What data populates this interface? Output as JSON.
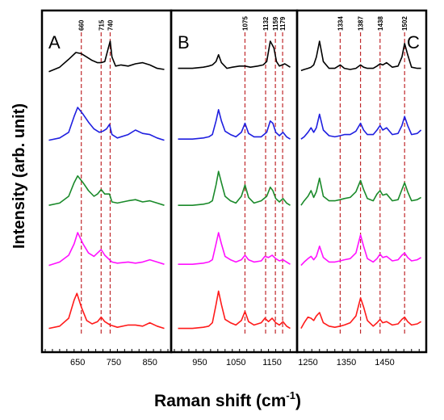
{
  "chart_data": [
    {
      "type": "line",
      "panel": "A",
      "xlim": [
        560,
        900
      ],
      "xticks": [
        650,
        750,
        850
      ],
      "peaks": [
        660,
        715,
        740
      ],
      "series": [
        {
          "color": "#000000",
          "x": [
            570,
            600,
            625,
            645,
            660,
            675,
            690,
            705,
            715,
            725,
            735,
            740,
            745,
            755,
            770,
            790,
            810,
            830,
            850,
            870,
            890
          ],
          "y": [
            0.15,
            0.35,
            0.7,
            1.0,
            0.95,
            0.8,
            0.65,
            0.55,
            0.55,
            0.6,
            1.2,
            1.5,
            0.8,
            0.4,
            0.45,
            0.4,
            0.5,
            0.55,
            0.45,
            0.3,
            0.25
          ]
        },
        {
          "color": "#1f1fe0",
          "x": [
            570,
            600,
            625,
            640,
            650,
            665,
            680,
            695,
            710,
            720,
            730,
            738,
            745,
            760,
            790,
            810,
            830,
            850,
            870,
            890
          ],
          "y": [
            0.05,
            0.15,
            0.4,
            1.1,
            1.5,
            1.2,
            0.85,
            0.55,
            0.4,
            0.45,
            0.55,
            0.75,
            0.3,
            0.15,
            0.3,
            0.5,
            0.35,
            0.3,
            0.15,
            0.05
          ]
        },
        {
          "color": "#1a8a2a",
          "x": [
            570,
            600,
            625,
            640,
            650,
            665,
            680,
            695,
            705,
            715,
            725,
            738,
            745,
            760,
            790,
            810,
            830,
            850,
            870,
            890
          ],
          "y": [
            0.1,
            0.2,
            0.5,
            1.1,
            1.4,
            1.1,
            0.75,
            0.5,
            0.6,
            0.8,
            0.6,
            0.6,
            0.25,
            0.2,
            0.3,
            0.35,
            0.25,
            0.3,
            0.2,
            0.1
          ]
        },
        {
          "color": "#ff10ff",
          "x": [
            570,
            600,
            625,
            640,
            650,
            665,
            680,
            695,
            705,
            715,
            725,
            738,
            745,
            760,
            790,
            810,
            830,
            850,
            870,
            890
          ],
          "y": [
            0.05,
            0.2,
            0.5,
            1.0,
            1.5,
            1.0,
            0.6,
            0.45,
            0.6,
            0.75,
            0.5,
            0.3,
            0.2,
            0.15,
            0.2,
            0.15,
            0.2,
            0.3,
            0.2,
            0.1
          ]
        },
        {
          "color": "#ff1a1a",
          "x": [
            570,
            600,
            625,
            640,
            648,
            660,
            675,
            690,
            705,
            715,
            725,
            740,
            760,
            790,
            810,
            830,
            850,
            870,
            890
          ],
          "y": [
            0.05,
            0.15,
            0.5,
            1.3,
            1.6,
            1.0,
            0.4,
            0.25,
            0.35,
            0.55,
            0.35,
            0.2,
            0.1,
            0.2,
            0.2,
            0.15,
            0.3,
            0.15,
            0.05
          ]
        }
      ]
    },
    {
      "type": "line",
      "panel": "B",
      "xlim": [
        880,
        1210
      ],
      "xticks": [
        950,
        1050,
        1150
      ],
      "peaks": [
        1075,
        1132,
        1159,
        1179
      ],
      "series": [
        {
          "color": "#000000",
          "x": [
            890,
            930,
            960,
            975,
            985,
            995,
            1002,
            1010,
            1025,
            1040,
            1060,
            1075,
            1090,
            1110,
            1125,
            1135,
            1145,
            1155,
            1162,
            1170,
            1185,
            1200
          ],
          "y": [
            0.3,
            0.3,
            0.35,
            0.4,
            0.45,
            0.6,
            0.9,
            0.55,
            0.3,
            0.35,
            0.4,
            0.4,
            0.35,
            0.4,
            0.45,
            0.6,
            1.5,
            1.2,
            0.6,
            0.4,
            0.5,
            0.35
          ]
        },
        {
          "color": "#1f1fe0",
          "x": [
            890,
            930,
            960,
            975,
            985,
            995,
            1002,
            1010,
            1020,
            1035,
            1050,
            1065,
            1075,
            1085,
            1100,
            1120,
            1135,
            1145,
            1152,
            1160,
            1170,
            1180,
            1190,
            1200
          ],
          "y": [
            0.1,
            0.1,
            0.15,
            0.2,
            0.3,
            0.9,
            1.4,
            0.9,
            0.45,
            0.3,
            0.2,
            0.4,
            0.8,
            0.35,
            0.2,
            0.2,
            0.4,
            0.9,
            0.8,
            0.4,
            0.25,
            0.4,
            0.2,
            0.1
          ]
        },
        {
          "color": "#1a8a2a",
          "x": [
            890,
            930,
            960,
            975,
            985,
            995,
            1002,
            1010,
            1020,
            1035,
            1050,
            1065,
            1075,
            1085,
            1100,
            1120,
            1135,
            1145,
            1152,
            1160,
            1170,
            1180,
            1190,
            1200
          ],
          "y": [
            0.1,
            0.1,
            0.15,
            0.2,
            0.3,
            1.0,
            1.6,
            1.1,
            0.5,
            0.3,
            0.2,
            0.5,
            1.0,
            0.45,
            0.2,
            0.3,
            0.5,
            0.9,
            0.75,
            0.4,
            0.25,
            0.4,
            0.2,
            0.1
          ]
        },
        {
          "color": "#ff10ff",
          "x": [
            890,
            930,
            960,
            975,
            985,
            995,
            1002,
            1010,
            1020,
            1035,
            1050,
            1065,
            1075,
            1085,
            1100,
            1120,
            1130,
            1140,
            1150,
            1160,
            1170,
            1180,
            1190,
            1200
          ],
          "y": [
            0.1,
            0.1,
            0.15,
            0.2,
            0.3,
            1.0,
            1.5,
            1.0,
            0.45,
            0.3,
            0.2,
            0.3,
            0.5,
            0.3,
            0.2,
            0.25,
            0.45,
            0.4,
            0.5,
            0.35,
            0.25,
            0.3,
            0.2,
            0.1
          ]
        },
        {
          "color": "#ff1a1a",
          "x": [
            890,
            930,
            960,
            975,
            985,
            995,
            1002,
            1010,
            1020,
            1035,
            1050,
            1065,
            1075,
            1085,
            1100,
            1120,
            1130,
            1140,
            1150,
            1160,
            1170,
            1180,
            1190,
            1200
          ],
          "y": [
            0.05,
            0.05,
            0.1,
            0.15,
            0.3,
            1.1,
            1.7,
            1.1,
            0.45,
            0.3,
            0.2,
            0.4,
            0.8,
            0.35,
            0.2,
            0.3,
            0.5,
            0.35,
            0.5,
            0.3,
            0.2,
            0.35,
            0.15,
            0.05
          ]
        }
      ]
    },
    {
      "type": "line",
      "panel": "C",
      "xlim": [
        1230,
        1550
      ],
      "xticks": [
        1250,
        1350,
        1450
      ],
      "peaks": [
        1334,
        1387,
        1438,
        1502
      ],
      "series": [
        {
          "color": "#000000",
          "x": [
            1232,
            1240,
            1250,
            1258,
            1265,
            1272,
            1280,
            1290,
            1305,
            1320,
            1334,
            1345,
            1360,
            1375,
            1387,
            1395,
            1405,
            1420,
            1430,
            1438,
            1445,
            1455,
            1470,
            1485,
            1495,
            1502,
            1510,
            1520,
            1535,
            1545
          ],
          "y": [
            0.2,
            0.25,
            0.3,
            0.35,
            0.45,
            0.8,
            1.5,
            0.6,
            0.3,
            0.3,
            0.45,
            0.3,
            0.25,
            0.3,
            0.45,
            0.35,
            0.3,
            0.3,
            0.4,
            0.5,
            0.45,
            0.55,
            0.35,
            0.4,
            0.8,
            1.4,
            0.9,
            0.35,
            0.3,
            0.3
          ]
        },
        {
          "color": "#1f1fe0",
          "x": [
            1232,
            1240,
            1250,
            1258,
            1265,
            1272,
            1280,
            1290,
            1305,
            1320,
            1334,
            1345,
            1360,
            1375,
            1387,
            1395,
            1405,
            1420,
            1430,
            1438,
            1445,
            1455,
            1470,
            1485,
            1495,
            1502,
            1510,
            1520,
            1535,
            1545
          ],
          "y": [
            0.1,
            0.2,
            0.4,
            0.6,
            0.4,
            0.6,
            1.2,
            0.5,
            0.25,
            0.2,
            0.25,
            0.3,
            0.3,
            0.45,
            0.8,
            0.5,
            0.3,
            0.3,
            0.5,
            0.7,
            0.5,
            0.6,
            0.3,
            0.35,
            0.7,
            1.1,
            0.7,
            0.3,
            0.35,
            0.5
          ]
        },
        {
          "color": "#1a8a2a",
          "x": [
            1232,
            1240,
            1250,
            1258,
            1265,
            1272,
            1280,
            1290,
            1305,
            1320,
            1334,
            1345,
            1360,
            1375,
            1387,
            1395,
            1405,
            1420,
            1430,
            1438,
            1445,
            1455,
            1470,
            1485,
            1495,
            1502,
            1510,
            1520,
            1535,
            1545
          ],
          "y": [
            0.1,
            0.3,
            0.5,
            0.75,
            0.45,
            0.7,
            1.3,
            0.5,
            0.3,
            0.3,
            0.35,
            0.4,
            0.45,
            0.7,
            1.2,
            0.8,
            0.4,
            0.3,
            0.6,
            0.75,
            0.55,
            0.6,
            0.3,
            0.35,
            0.8,
            1.1,
            0.7,
            0.3,
            0.35,
            0.45
          ]
        },
        {
          "color": "#ff10ff",
          "x": [
            1232,
            1240,
            1250,
            1258,
            1265,
            1272,
            1280,
            1290,
            1305,
            1320,
            1334,
            1345,
            1360,
            1375,
            1387,
            1395,
            1405,
            1420,
            1430,
            1438,
            1445,
            1455,
            1470,
            1485,
            1495,
            1502,
            1510,
            1520,
            1535,
            1545
          ],
          "y": [
            0.05,
            0.2,
            0.35,
            0.45,
            0.3,
            0.45,
            0.9,
            0.4,
            0.2,
            0.2,
            0.25,
            0.3,
            0.35,
            0.6,
            1.4,
            0.9,
            0.35,
            0.2,
            0.35,
            0.55,
            0.4,
            0.45,
            0.25,
            0.3,
            0.5,
            0.6,
            0.4,
            0.25,
            0.3,
            0.4
          ]
        },
        {
          "color": "#ff1a1a",
          "x": [
            1232,
            1240,
            1250,
            1258,
            1265,
            1272,
            1280,
            1290,
            1305,
            1320,
            1334,
            1345,
            1360,
            1375,
            1387,
            1395,
            1405,
            1420,
            1430,
            1438,
            1445,
            1455,
            1470,
            1485,
            1495,
            1502,
            1510,
            1520,
            1535,
            1545
          ],
          "y": [
            0.05,
            0.3,
            0.55,
            0.5,
            0.4,
            0.6,
            0.75,
            0.3,
            0.15,
            0.1,
            0.15,
            0.2,
            0.3,
            0.6,
            1.4,
            1.0,
            0.4,
            0.15,
            0.3,
            0.45,
            0.3,
            0.35,
            0.2,
            0.25,
            0.45,
            0.55,
            0.35,
            0.2,
            0.25,
            0.35
          ]
        }
      ]
    }
  ],
  "labels": {
    "ylabel": "Intensity (arb. unit)",
    "xlabel": "Raman shift (cm",
    "xlabel_sup": "-1",
    "xlabel_close": ")"
  },
  "colors": {
    "frame": "#000000",
    "peak_line": "#c0282b"
  }
}
